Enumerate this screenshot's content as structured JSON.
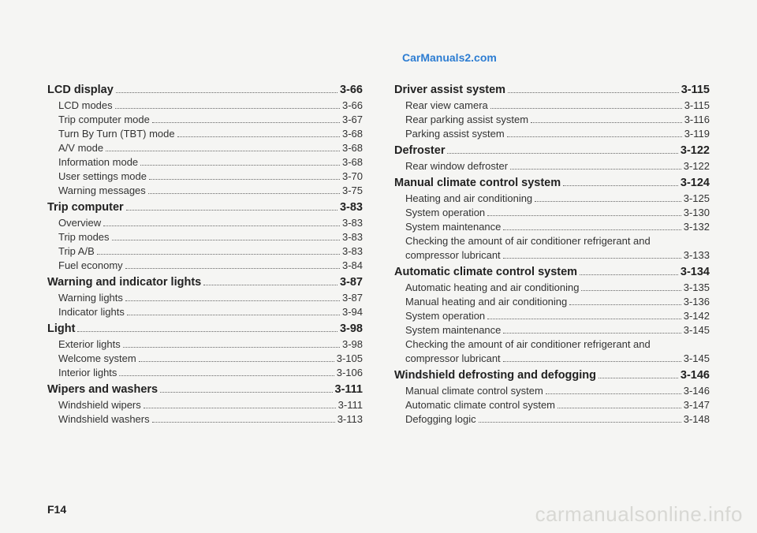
{
  "header_link": "CarManuals2.com",
  "page_footer": "F14",
  "watermark": "carmanualsonline.info",
  "left_col": [
    {
      "type": "section",
      "label": "LCD display",
      "page": "3-66"
    },
    {
      "type": "sub",
      "label": "LCD modes",
      "page": "3-66"
    },
    {
      "type": "sub",
      "label": "Trip computer mode",
      "page": "3-67"
    },
    {
      "type": "sub",
      "label": "Turn By Turn (TBT) mode",
      "page": "3-68"
    },
    {
      "type": "sub",
      "label": "A/V mode",
      "page": "3-68"
    },
    {
      "type": "sub",
      "label": "Information mode",
      "page": "3-68"
    },
    {
      "type": "sub",
      "label": "User settings mode",
      "page": "3-70"
    },
    {
      "type": "sub",
      "label": "Warning messages",
      "page": "3-75"
    },
    {
      "type": "section",
      "label": "Trip computer",
      "page": "3-83"
    },
    {
      "type": "sub",
      "label": "Overview",
      "page": "3-83"
    },
    {
      "type": "sub",
      "label": "Trip modes",
      "page": "3-83"
    },
    {
      "type": "sub",
      "label": "Trip A/B",
      "page": "3-83"
    },
    {
      "type": "sub",
      "label": "Fuel economy",
      "page": "3-84"
    },
    {
      "type": "section",
      "label": "Warning and indicator lights",
      "page": "3-87"
    },
    {
      "type": "sub",
      "label": "Warning lights",
      "page": "3-87"
    },
    {
      "type": "sub",
      "label": "Indicator lights",
      "page": "3-94"
    },
    {
      "type": "section",
      "label": "Light",
      "page": "3-98"
    },
    {
      "type": "sub",
      "label": "Exterior lights",
      "page": "3-98"
    },
    {
      "type": "sub",
      "label": "Welcome system",
      "page": "3-105"
    },
    {
      "type": "sub",
      "label": "Interior lights",
      "page": "3-106"
    },
    {
      "type": "section",
      "label": "Wipers and washers",
      "page": "3-111"
    },
    {
      "type": "sub",
      "label": "Windshield wipers",
      "page": "3-111"
    },
    {
      "type": "sub",
      "label": "Windshield washers",
      "page": "3-113"
    }
  ],
  "right_col": [
    {
      "type": "section",
      "label": "Driver assist system",
      "page": "3-115"
    },
    {
      "type": "sub",
      "label": "Rear view camera",
      "page": "3-115"
    },
    {
      "type": "sub",
      "label": "Rear parking assist system",
      "page": "3-116"
    },
    {
      "type": "sub",
      "label": "Parking assist system",
      "page": "3-119"
    },
    {
      "type": "section",
      "label": "Defroster",
      "page": "3-122"
    },
    {
      "type": "sub",
      "label": "Rear window defroster",
      "page": "3-122"
    },
    {
      "type": "section",
      "label": "Manual climate control system",
      "page": "3-124"
    },
    {
      "type": "sub",
      "label": "Heating and air conditioning",
      "page": "3-125"
    },
    {
      "type": "sub",
      "label": "System operation",
      "page": "3-130"
    },
    {
      "type": "sub",
      "label": "System maintenance",
      "page": "3-132"
    },
    {
      "type": "sub",
      "label": "Checking the amount of air conditioner refrigerant and",
      "page": "",
      "nodots": true
    },
    {
      "type": "sub",
      "label": "compressor lubricant",
      "page": "3-133"
    },
    {
      "type": "section",
      "label": "Automatic climate control system",
      "page": "3-134"
    },
    {
      "type": "sub",
      "label": "Automatic heating and air conditioning",
      "page": "3-135"
    },
    {
      "type": "sub",
      "label": "Manual heating and air conditioning",
      "page": "3-136"
    },
    {
      "type": "sub",
      "label": "System operation",
      "page": "3-142"
    },
    {
      "type": "sub",
      "label": "System maintenance",
      "page": "3-145"
    },
    {
      "type": "sub",
      "label": "Checking the amount of air conditioner refrigerant and",
      "page": "",
      "nodots": true
    },
    {
      "type": "sub",
      "label": "compressor lubricant",
      "page": "3-145"
    },
    {
      "type": "section",
      "label": "Windshield defrosting and defogging",
      "page": "3-146"
    },
    {
      "type": "sub",
      "label": "Manual climate control system",
      "page": "3-146"
    },
    {
      "type": "sub",
      "label": "Automatic climate control system",
      "page": "3-147"
    },
    {
      "type": "sub",
      "label": "Defogging logic",
      "page": "3-148"
    }
  ]
}
